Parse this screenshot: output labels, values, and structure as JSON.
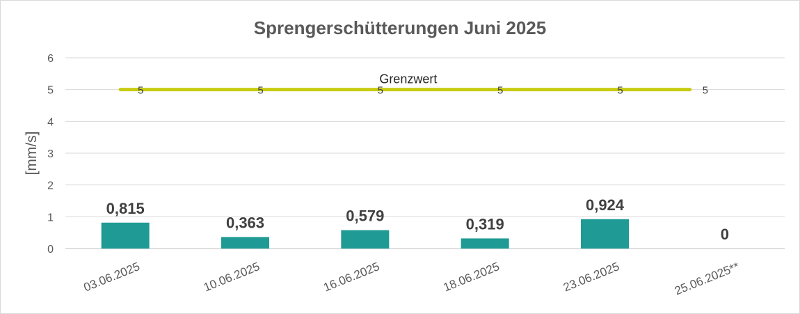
{
  "chart_data": {
    "type": "bar",
    "title": "Sprengerschütterungen Juni 2025",
    "ylabel": "[mm/s]",
    "xlabel": "",
    "ylim": [
      0,
      6
    ],
    "yticks": [
      0,
      1,
      2,
      3,
      4,
      5,
      6
    ],
    "grid": true,
    "legend": "none",
    "categories": [
      "03.06.2025",
      "10.06.2025",
      "16.06.2025",
      "18.06.2025",
      "23.06.2025",
      "25.06.2025**"
    ],
    "series": [
      {
        "type": "bar",
        "values": [
          0.815,
          0.363,
          0.579,
          0.319,
          0.924,
          0
        ],
        "labels": [
          "0,815",
          "0,363",
          "0,579",
          "0,319",
          "0,924",
          "0"
        ],
        "color": "#1f9a94"
      },
      {
        "type": "line",
        "name": "Grenzwert",
        "values": [
          5,
          5,
          5,
          5,
          5,
          5
        ],
        "labels": [
          "5",
          "5",
          "5",
          "5",
          "5",
          "5"
        ],
        "color": "#c8cc12"
      }
    ]
  }
}
